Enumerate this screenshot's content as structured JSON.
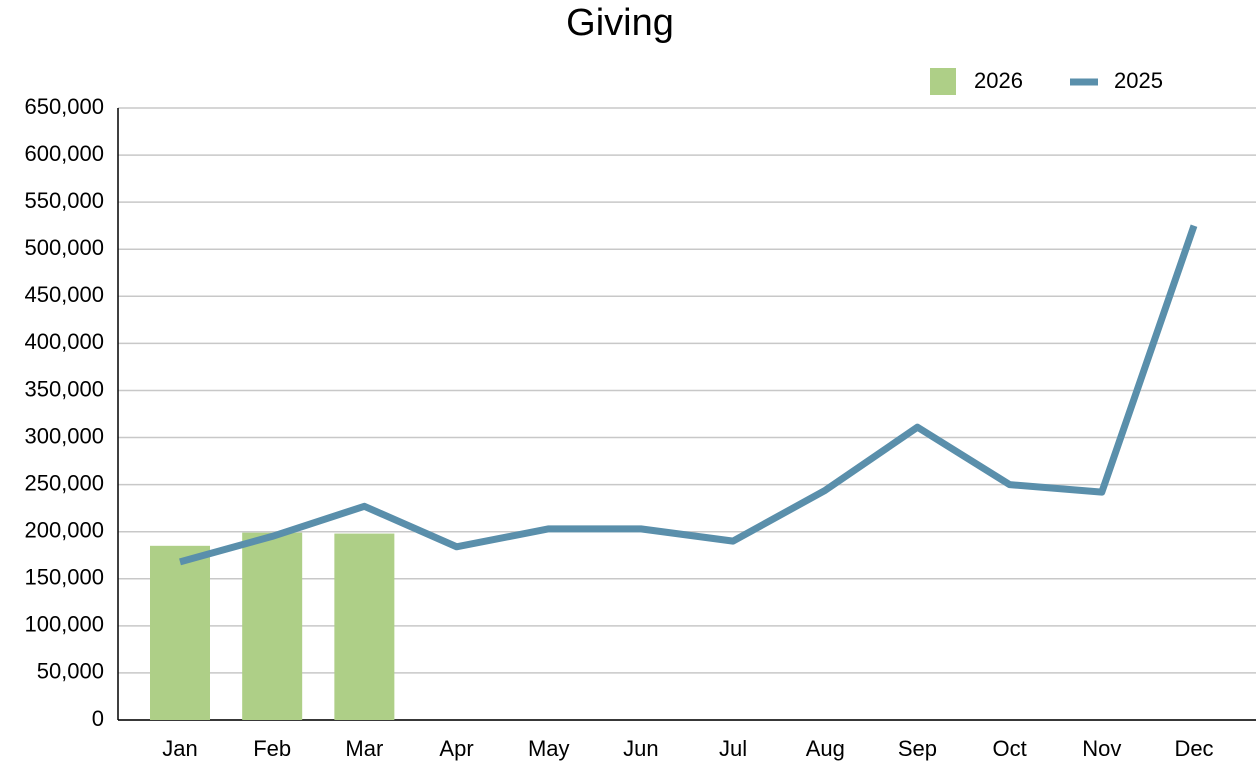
{
  "chart_data": {
    "type": "bar",
    "title": "Giving",
    "categories": [
      "Jan",
      "Feb",
      "Mar",
      "Apr",
      "May",
      "Jun",
      "Jul",
      "Aug",
      "Sep",
      "Oct",
      "Nov",
      "Dec"
    ],
    "series": [
      {
        "name": "2026",
        "type": "bar",
        "color": "#aecf87",
        "values": [
          185000,
          199000,
          198000,
          null,
          null,
          null,
          null,
          null,
          null,
          null,
          null,
          null
        ]
      },
      {
        "name": "2025",
        "type": "line",
        "color": "#5a8fab",
        "values": [
          168000,
          195000,
          227000,
          184000,
          203000,
          203000,
          190000,
          244000,
          311000,
          250000,
          242000,
          525000
        ]
      }
    ],
    "ylim": [
      0,
      650000
    ],
    "yticks": [
      0,
      {
        "value": 50000,
        "label": "50,000"
      },
      {
        "value": 100000,
        "label": "100,000"
      },
      {
        "value": 150000,
        "label": "150,000"
      },
      {
        "value": 200000,
        "label": "200,000"
      },
      {
        "value": 250000,
        "label": "250,000"
      },
      {
        "value": 300000,
        "label": "300,000"
      },
      {
        "value": 350000,
        "label": "350,000"
      },
      {
        "value": 400000,
        "label": "400,000"
      },
      {
        "value": 450000,
        "label": "450,000"
      },
      {
        "value": 500000,
        "label": "500,000"
      },
      {
        "value": 550000,
        "label": "550,000"
      },
      {
        "value": 600000,
        "label": "600,000"
      },
      {
        "value": 650000,
        "label": "650,000"
      }
    ],
    "grid": true,
    "legend": "top-right"
  }
}
